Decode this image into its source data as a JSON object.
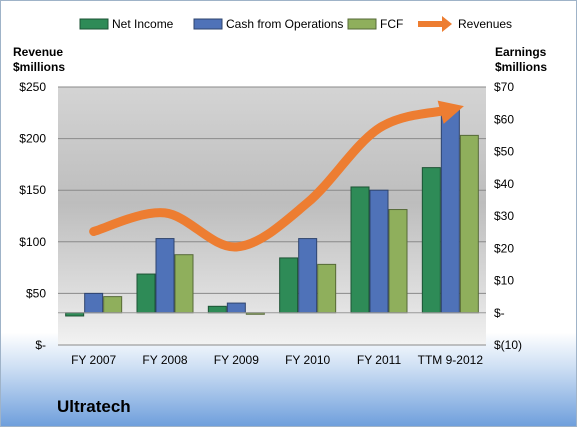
{
  "chart_data": {
    "type": "bar",
    "title": "",
    "categories": [
      "FY 2007",
      "FY 2008",
      "FY 2009",
      "FY 2010",
      "FY 2011",
      "TTM 9-2012"
    ],
    "series": [
      {
        "name": "Net Income",
        "axis": "right",
        "color": "#2e8b57",
        "values": [
          -1,
          12,
          2,
          17,
          39,
          45
        ]
      },
      {
        "name": "Cash from Operations",
        "axis": "right",
        "color": "#4f72b8",
        "values": [
          6,
          23,
          3,
          23,
          38,
          64
        ]
      },
      {
        "name": "FCF",
        "axis": "right",
        "color": "#8faf5c",
        "values": [
          5,
          18,
          0,
          15,
          32,
          55
        ]
      },
      {
        "name": "Revenues",
        "axis": "left",
        "type": "line",
        "color": "#ed7d31",
        "values": [
          110,
          128,
          95,
          138,
          210,
          228
        ]
      }
    ],
    "left_axis": {
      "label_line1": "Revenue",
      "label_line2": "$millions",
      "ylim": [
        0,
        250
      ],
      "ticks": [
        0,
        50,
        100,
        150,
        200,
        250
      ],
      "tick_labels": [
        "$-",
        "$50",
        "$100",
        "$150",
        "$200",
        "$250"
      ]
    },
    "right_axis": {
      "label_line1": "Earnings",
      "label_line2": "$millions",
      "ylim": [
        -10,
        70
      ],
      "ticks": [
        -10,
        0,
        10,
        20,
        30,
        40,
        50,
        60,
        70
      ],
      "tick_labels": [
        "$(10)",
        "$-",
        "$10",
        "$20",
        "$30",
        "$40",
        "$50",
        "$60",
        "$70"
      ]
    },
    "legend_position": "top",
    "grid": true
  },
  "company_name": "Ultratech"
}
